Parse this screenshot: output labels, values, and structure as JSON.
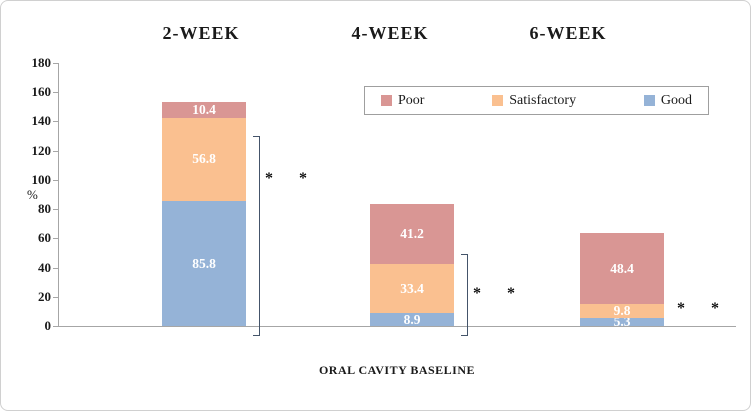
{
  "chart_data": {
    "type": "bar",
    "stacked": true,
    "title": "",
    "categories": [
      "2-WEEK",
      "4-WEEK",
      "6-WEEK"
    ],
    "series": [
      {
        "name": "Good",
        "color": "#95b3d7",
        "values": [
          85.8,
          8.9,
          5.3
        ]
      },
      {
        "name": "Satisfactory",
        "color": "#fac090",
        "values": [
          56.8,
          33.4,
          9.8
        ]
      },
      {
        "name": "Poor",
        "color": "#d99694",
        "values": [
          10.4,
          41.2,
          48.4
        ]
      }
    ],
    "legend": [
      "Poor",
      "Satisfactory",
      "Good"
    ],
    "legend_position": "top-right-inside",
    "xlabel": "ORAL CAVITY BASELINE",
    "ylabel": "%",
    "ylim": [
      0,
      180
    ],
    "ytick_step": 20,
    "gridlines": false,
    "annotations": [
      {
        "category": "2-WEEK",
        "bracket": {
          "from": -7,
          "to": 130
        },
        "text": "* *",
        "text_y": 100
      },
      {
        "category": "4-WEEK",
        "bracket": {
          "from": -7,
          "to": 49
        },
        "text": "* *",
        "text_y": 21
      },
      {
        "category": "6-WEEK",
        "bracket": null,
        "text": "* *",
        "text_y": 11
      }
    ]
  }
}
